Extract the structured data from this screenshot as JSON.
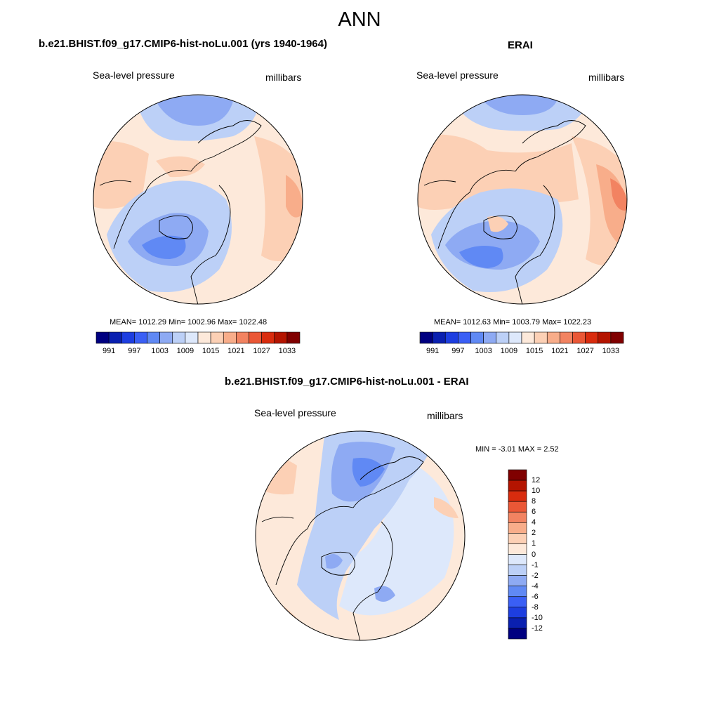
{
  "title": "ANN",
  "colors": {
    "diverging_scale": [
      "#000080",
      "#0a20b0",
      "#1d3ee0",
      "#3a5ff5",
      "#6089f4",
      "#8eaaf3",
      "#bcd0f7",
      "#dde8fb",
      "#fde9da",
      "#fcd0b5",
      "#f8ad8a",
      "#f28361",
      "#ea5736",
      "#d92c0e",
      "#b41400",
      "#800000"
    ]
  },
  "panels": {
    "model": {
      "title": "b.e21.BHIST.f09_g17.CMIP6-hist-noLu.001 (yrs 1940-1964)",
      "variable": "Sea-level pressure",
      "units": "millibars",
      "stats": "MEAN= 1012.29  Min= 1002.96  Max= 1022.48",
      "colorbar_ticks": [
        "991",
        "997",
        "1003",
        "1009",
        "1015",
        "1021",
        "1027",
        "1033"
      ]
    },
    "obs": {
      "title": "ERAI",
      "variable": "Sea-level pressure",
      "units": "millibars",
      "stats": "MEAN= 1012.63  Min= 1003.79  Max= 1022.23",
      "colorbar_ticks": [
        "991",
        "997",
        "1003",
        "1009",
        "1015",
        "1021",
        "1027",
        "1033"
      ]
    },
    "diff": {
      "title": "b.e21.BHIST.f09_g17.CMIP6-hist-noLu.001 - ERAI",
      "variable": "Sea-level pressure",
      "units": "millibars",
      "stats": "MIN =  -3.01 MAX =   2.52",
      "colorbar_labels": [
        "12",
        "10",
        "8",
        "6",
        "4",
        "2",
        "1",
        "0",
        "-1",
        "-2",
        "-4",
        "-6",
        "-8",
        "-10",
        "-12"
      ]
    }
  }
}
